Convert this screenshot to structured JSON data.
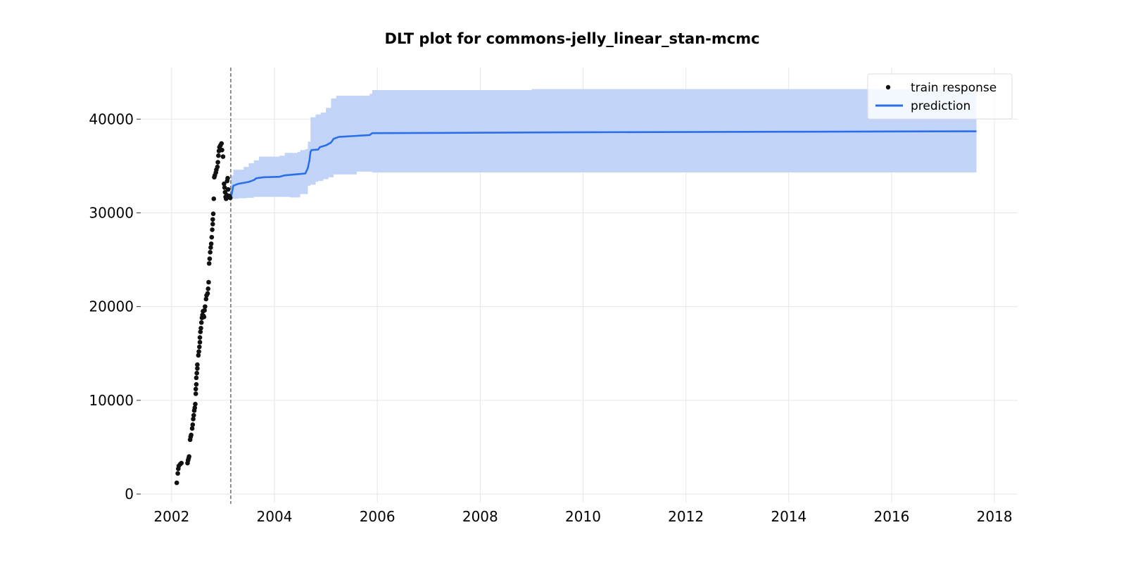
{
  "chart_data": {
    "type": "line",
    "title": "DLT plot for commons-jelly_linear_stan-mcmc",
    "xlabel": "",
    "ylabel": "",
    "xlim": [
      2001.4,
      2018.45
    ],
    "ylim": [
      -900,
      45500
    ],
    "x_ticks": [
      2002,
      2004,
      2006,
      2008,
      2010,
      2012,
      2014,
      2016,
      2018
    ],
    "y_ticks": [
      0,
      10000,
      20000,
      30000,
      40000
    ],
    "grid": true,
    "legend_position": "top-right",
    "train_cutoff": 2003.15,
    "colors": {
      "points": "#111111",
      "line": "#2a6fe8",
      "band": "#bed2f8",
      "cutoff": "#777777"
    },
    "series": [
      {
        "name": "train response",
        "kind": "scatter",
        "points": [
          [
            2002.1,
            1200
          ],
          [
            2002.12,
            2200
          ],
          [
            2002.13,
            2700
          ],
          [
            2002.14,
            3000
          ],
          [
            2002.17,
            3200
          ],
          [
            2002.19,
            3300
          ],
          [
            2002.31,
            3300
          ],
          [
            2002.32,
            3600
          ],
          [
            2002.33,
            3800
          ],
          [
            2002.34,
            4000
          ],
          [
            2002.36,
            5800
          ],
          [
            2002.37,
            6100
          ],
          [
            2002.38,
            6300
          ],
          [
            2002.4,
            7000
          ],
          [
            2002.41,
            7400
          ],
          [
            2002.42,
            8000
          ],
          [
            2002.43,
            8400
          ],
          [
            2002.44,
            8900
          ],
          [
            2002.45,
            9200
          ],
          [
            2002.46,
            9600
          ],
          [
            2002.47,
            10700
          ],
          [
            2002.47,
            11200
          ],
          [
            2002.48,
            11700
          ],
          [
            2002.48,
            12400
          ],
          [
            2002.49,
            12900
          ],
          [
            2002.5,
            13400
          ],
          [
            2002.5,
            13800
          ],
          [
            2002.52,
            14800
          ],
          [
            2002.53,
            15200
          ],
          [
            2002.54,
            15700
          ],
          [
            2002.55,
            16200
          ],
          [
            2002.55,
            16700
          ],
          [
            2002.56,
            17300
          ],
          [
            2002.57,
            17700
          ],
          [
            2002.58,
            18300
          ],
          [
            2002.59,
            18800
          ],
          [
            2002.6,
            19100
          ],
          [
            2002.61,
            19500
          ],
          [
            2002.62,
            19000
          ],
          [
            2002.63,
            18900
          ],
          [
            2002.64,
            19600
          ],
          [
            2002.65,
            20000
          ],
          [
            2002.67,
            20800
          ],
          [
            2002.68,
            21200
          ],
          [
            2002.7,
            21400
          ],
          [
            2002.71,
            21900
          ],
          [
            2002.72,
            22600
          ],
          [
            2002.73,
            24600
          ],
          [
            2002.74,
            25100
          ],
          [
            2002.75,
            25800
          ],
          [
            2002.76,
            26300
          ],
          [
            2002.77,
            26700
          ],
          [
            2002.78,
            27400
          ],
          [
            2002.79,
            28200
          ],
          [
            2002.8,
            28800
          ],
          [
            2002.8,
            29300
          ],
          [
            2002.81,
            29900
          ],
          [
            2002.82,
            31500
          ],
          [
            2002.83,
            33800
          ],
          [
            2002.84,
            34000
          ],
          [
            2002.86,
            34300
          ],
          [
            2002.87,
            34600
          ],
          [
            2002.89,
            34900
          ],
          [
            2002.9,
            35400
          ],
          [
            2002.91,
            36100
          ],
          [
            2002.92,
            36600
          ],
          [
            2002.93,
            37000
          ],
          [
            2002.95,
            37200
          ],
          [
            2002.97,
            37400
          ],
          [
            2002.98,
            36700
          ],
          [
            2003.0,
            36000
          ],
          [
            2003.02,
            33100
          ],
          [
            2003.03,
            32700
          ],
          [
            2003.04,
            32200
          ],
          [
            2003.05,
            31700
          ],
          [
            2003.06,
            31500
          ],
          [
            2003.07,
            31900
          ],
          [
            2003.08,
            33400
          ],
          [
            2003.09,
            33700
          ],
          [
            2003.1,
            32500
          ],
          [
            2003.12,
            31800
          ],
          [
            2003.14,
            31600
          ]
        ]
      },
      {
        "name": "prediction",
        "kind": "line",
        "points": [
          [
            2003.15,
            31500
          ],
          [
            2003.2,
            32900
          ],
          [
            2003.3,
            33100
          ],
          [
            2003.5,
            33300
          ],
          [
            2003.6,
            33500
          ],
          [
            2003.65,
            33700
          ],
          [
            2003.8,
            33800
          ],
          [
            2004.1,
            33850
          ],
          [
            2004.2,
            34000
          ],
          [
            2004.5,
            34150
          ],
          [
            2004.6,
            34200
          ],
          [
            2004.65,
            34800
          ],
          [
            2004.68,
            35600
          ],
          [
            2004.7,
            36500
          ],
          [
            2004.72,
            36700
          ],
          [
            2004.85,
            36750
          ],
          [
            2004.88,
            37000
          ],
          [
            2005.0,
            37200
          ],
          [
            2005.1,
            37500
          ],
          [
            2005.15,
            37900
          ],
          [
            2005.25,
            38100
          ],
          [
            2005.85,
            38300
          ],
          [
            2005.9,
            38500
          ],
          [
            2008,
            38550
          ],
          [
            2010,
            38600
          ],
          [
            2014,
            38650
          ],
          [
            2017.65,
            38700
          ]
        ]
      }
    ],
    "band": {
      "upper": [
        [
          2003.15,
          34000
        ],
        [
          2003.2,
          34600
        ],
        [
          2003.4,
          34900
        ],
        [
          2003.5,
          35300
        ],
        [
          2003.6,
          35600
        ],
        [
          2003.7,
          36000
        ],
        [
          2004.1,
          36100
        ],
        [
          2004.2,
          36400
        ],
        [
          2004.45,
          36500
        ],
        [
          2004.5,
          36700
        ],
        [
          2004.6,
          36800
        ],
        [
          2004.65,
          37600
        ],
        [
          2004.7,
          40200
        ],
        [
          2004.8,
          40500
        ],
        [
          2004.9,
          40700
        ],
        [
          2005.0,
          41200
        ],
        [
          2005.1,
          42200
        ],
        [
          2005.2,
          42500
        ],
        [
          2005.85,
          42700
        ],
        [
          2005.9,
          43100
        ],
        [
          2009,
          43200
        ],
        [
          2017.65,
          43300
        ]
      ],
      "lower": [
        [
          2003.15,
          31400
        ],
        [
          2003.3,
          31500
        ],
        [
          2003.45,
          31550
        ],
        [
          2003.6,
          31600
        ],
        [
          2004.3,
          31700
        ],
        [
          2004.5,
          31650
        ],
        [
          2004.65,
          32000
        ],
        [
          2004.7,
          32900
        ],
        [
          2004.8,
          33000
        ],
        [
          2004.85,
          33300
        ],
        [
          2004.95,
          33400
        ],
        [
          2005.05,
          33600
        ],
        [
          2005.15,
          33800
        ],
        [
          2005.6,
          34100
        ],
        [
          2005.9,
          34400
        ],
        [
          2017.65,
          34300
        ]
      ]
    }
  }
}
